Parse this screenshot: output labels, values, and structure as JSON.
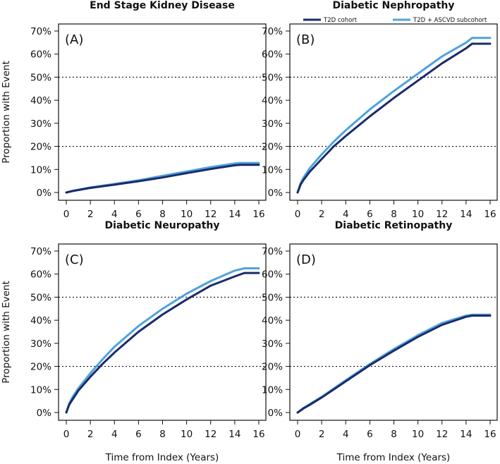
{
  "figure": {
    "ylabel": "Proportion with Event",
    "xlabel": "Time from Index (Years)",
    "legend": {
      "placement": "top-right",
      "entries": [
        {
          "name": "T2D cohort",
          "color": "#1a2b6b"
        },
        {
          "name": "T2D + ASCVD subcohort",
          "color": "#4ea3dc"
        }
      ]
    }
  },
  "chart_data": [
    {
      "type": "line",
      "panel": "(A)",
      "title": "End Stage Kidney Disease",
      "xlabel": "Time from Index (Years)",
      "ylabel": "Proportion with Event",
      "xlim": [
        0,
        16
      ],
      "ylim": [
        0,
        70
      ],
      "xticks": [
        0,
        2,
        4,
        6,
        8,
        10,
        12,
        14,
        16
      ],
      "yticks": [
        "0%",
        "10%",
        "20%",
        "30%",
        "40%",
        "50%",
        "60%",
        "70%"
      ],
      "hlines": [
        20,
        50
      ],
      "x": [
        0,
        0.5,
        2,
        4,
        6,
        8,
        10,
        12,
        14,
        14.5,
        16
      ],
      "series": [
        {
          "name": "T2D cohort",
          "values": [
            0,
            0.6,
            2.0,
            3.4,
            4.9,
            6.5,
            8.4,
            10.2,
            11.8,
            12.0,
            12.0
          ]
        },
        {
          "name": "T2D + ASCVD subcohort",
          "values": [
            0,
            0.7,
            2.2,
            3.7,
            5.3,
            7.2,
            9.1,
            11.0,
            12.6,
            12.8,
            12.8
          ]
        }
      ]
    },
    {
      "type": "line",
      "panel": "(B)",
      "title": "Diabetic Nephropathy",
      "xlabel": "Time from Index (Years)",
      "ylabel": "Proportion with Event",
      "xlim": [
        0,
        16
      ],
      "ylim": [
        0,
        70
      ],
      "xticks": [
        0,
        2,
        4,
        6,
        8,
        10,
        12,
        14,
        16
      ],
      "yticks": [
        "0%",
        "10%",
        "20%",
        "30%",
        "40%",
        "50%",
        "60%",
        "70%"
      ],
      "hlines": [
        20,
        50
      ],
      "x": [
        0,
        0.25,
        0.5,
        1,
        2,
        3,
        4,
        6,
        8,
        10,
        12,
        14,
        14.5,
        16
      ],
      "series": [
        {
          "name": "T2D cohort",
          "values": [
            0,
            3.5,
            5.5,
            9,
            14.5,
            20,
            24.5,
            33,
            41,
            48.5,
            56,
            62.5,
            64.5,
            64.5
          ]
        },
        {
          "name": "T2D + ASCVD subcohort",
          "values": [
            0,
            4,
            6.5,
            10.5,
            16.5,
            22,
            27,
            36,
            44,
            51.5,
            59,
            65,
            67,
            67
          ]
        }
      ]
    },
    {
      "type": "line",
      "panel": "(C)",
      "title": "Diabetic Neuropathy",
      "xlabel": "Time from Index (Years)",
      "ylabel": "Proportion with Event",
      "xlim": [
        0,
        16
      ],
      "ylim": [
        0,
        70
      ],
      "xticks": [
        0,
        2,
        4,
        6,
        8,
        10,
        12,
        14,
        16
      ],
      "yticks": [
        "0%",
        "10%",
        "20%",
        "30%",
        "40%",
        "50%",
        "60%",
        "70%"
      ],
      "hlines": [
        20,
        50
      ],
      "x": [
        0,
        0.25,
        0.5,
        1,
        2,
        3,
        4,
        6,
        8,
        10,
        12,
        14,
        14.8,
        16
      ],
      "series": [
        {
          "name": "T2D cohort",
          "values": [
            0,
            3.5,
            5.5,
            9.5,
            15.5,
            21,
            26,
            35,
            42.5,
            49,
            55,
            59,
            60.5,
            60.5
          ]
        },
        {
          "name": "T2D + ASCVD subcohort",
          "values": [
            0,
            4,
            6.5,
            10.5,
            17,
            23,
            28.5,
            37.5,
            45,
            51.5,
            57,
            61.5,
            62.5,
            62.5
          ]
        }
      ]
    },
    {
      "type": "line",
      "panel": "(D)",
      "title": "Diabetic Retinopathy",
      "xlabel": "Time from Index (Years)",
      "ylabel": "Proportion with Event",
      "xlim": [
        0,
        16
      ],
      "ylim": [
        0,
        70
      ],
      "xticks": [
        0,
        2,
        4,
        6,
        8,
        10,
        12,
        14,
        16
      ],
      "yticks": [
        "0%",
        "10%",
        "20%",
        "30%",
        "40%",
        "50%",
        "60%",
        "70%"
      ],
      "hlines": [
        20,
        50
      ],
      "x": [
        0,
        0.5,
        1,
        2,
        4,
        6,
        8,
        10,
        12,
        14,
        14.5,
        16
      ],
      "series": [
        {
          "name": "T2D cohort",
          "values": [
            0,
            1.8,
            3.3,
            6.5,
            13.5,
            20.5,
            26.8,
            32.8,
            38,
            41.5,
            42,
            42
          ]
        },
        {
          "name": "T2D + ASCVD subcohort",
          "values": [
            0,
            2.0,
            3.6,
            6.8,
            14.0,
            21,
            27.5,
            33.5,
            38.8,
            42,
            42.4,
            42.4
          ]
        }
      ]
    }
  ]
}
